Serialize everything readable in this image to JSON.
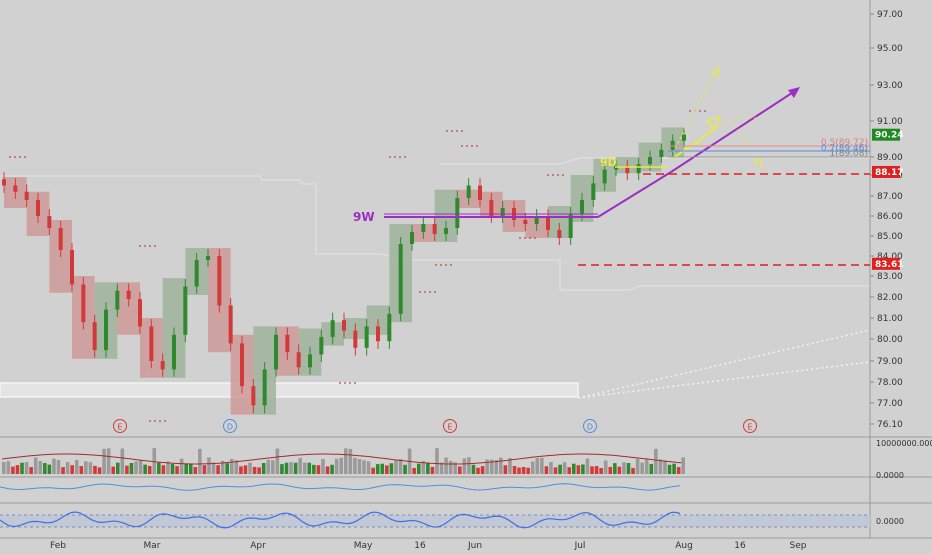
{
  "colors": {
    "background": "#d1d1d1",
    "up": "#2f8a2f",
    "down": "#d23a3a",
    "box_up": "#9fb39b",
    "box_down": "#cf9a9a",
    "purple": "#9b2fc2",
    "yellow": "#e9e94a",
    "red_dash": "#e01f1f",
    "blue_line": "#4f8fe0",
    "axis_text": "#333333"
  },
  "price_axis": {
    "ticks": [
      "97.00",
      "95.00",
      "93.00",
      "91.00",
      "89.00",
      "88.00",
      "87.00",
      "86.00",
      "85.00",
      "84.00",
      "83.00",
      "82.00",
      "81.00",
      "80.00",
      "79.00",
      "78.00",
      "77.00",
      "76.10"
    ],
    "badges": [
      {
        "label": "90.24",
        "price": 90.24,
        "color": "#1f8a1f"
      },
      {
        "label": "88.17",
        "price": 88.17,
        "color": "#e01f1f"
      },
      {
        "label": "83.61",
        "price": 83.61,
        "color": "#e01f1f"
      }
    ]
  },
  "indicator_axis": {
    "volume_label": "10000000.0000",
    "osc1_label": "0.0000",
    "osc2_label": "0.0000"
  },
  "time_axis": {
    "labels": [
      "Feb",
      "Mar",
      "Apr",
      "May",
      "16",
      "Jun",
      "Jul",
      "Aug",
      "16",
      "Sep"
    ]
  },
  "annotations": {
    "level_9w": "9W",
    "level_9d": "9D",
    "fib_05": "0.5(89.72)",
    "fib_0618": "0.7(89.46)",
    "fib_1": "1(89.08)",
    "events": [
      "E",
      "D",
      "E",
      "D",
      "E"
    ]
  },
  "chart_data": {
    "type": "candlestick",
    "title": "",
    "x_axis": "date",
    "xlim": [
      "Jan 2018",
      "Sep 2018"
    ],
    "ylim": [
      76.1,
      97.0
    ],
    "price_ticks": [
      76.1,
      77,
      78,
      79,
      80,
      81,
      82,
      83,
      84,
      85,
      86,
      87,
      88,
      89,
      91,
      93,
      95,
      97
    ],
    "horizontal_levels": [
      {
        "label": "88.17",
        "value": 88.17,
        "style": "red dashed"
      },
      {
        "label": "83.61",
        "value": 83.61,
        "style": "red dashed"
      },
      {
        "label": "9W",
        "value": 85.95,
        "style": "purple"
      }
    ],
    "fibonacci": [
      {
        "label": "0.5(89.72)",
        "value": 89.72
      },
      {
        "label": "0.7(89.46)",
        "value": 89.46
      },
      {
        "label": "1(89.08)",
        "value": 89.08
      }
    ],
    "last_price": 90.24,
    "close_series_approx": [
      87.5,
      87.2,
      86.8,
      86.0,
      85.4,
      84.3,
      82.6,
      80.8,
      79.5,
      81.4,
      82.3,
      81.9,
      80.6,
      79.0,
      78.6,
      80.2,
      82.5,
      83.8,
      84.0,
      81.6,
      79.8,
      77.8,
      76.9,
      78.6,
      80.2,
      79.4,
      78.7,
      79.3,
      80.1,
      80.9,
      80.4,
      79.6,
      80.6,
      79.9,
      81.2,
      84.6,
      85.2,
      85.6,
      85.1,
      85.4,
      86.9,
      87.5,
      86.8,
      86.0,
      86.4,
      85.8,
      85.6,
      86.0,
      85.3,
      84.9,
      86.1,
      86.8,
      87.6,
      88.3,
      88.5,
      88.1,
      88.6,
      89.0,
      89.4,
      89.9,
      90.24
    ]
  }
}
